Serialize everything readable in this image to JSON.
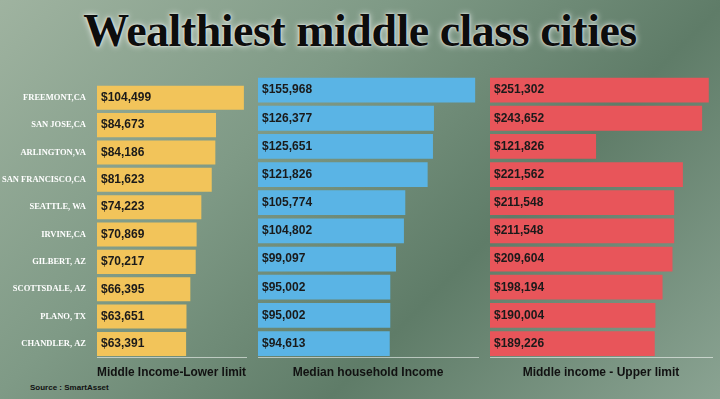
{
  "title": "Wealthiest middle class cities",
  "source": "Source : SmartAsset",
  "chart_data": [
    {
      "type": "bar",
      "orientation": "horizontal",
      "xlabel": "Middle Income-Lower limit",
      "categories": [
        "FREEMONT,CA",
        "SAN JOSE,CA",
        "ARLINGTON,VA",
        "SAN FRANCISCO,CA",
        "SEATTLE, WA",
        "IRVINE,CA",
        "GILBERT, AZ",
        "SCOTTSDALE, AZ",
        "PLANO, TX",
        "CHANDLER, AZ"
      ],
      "values": [
        104499,
        84673,
        84186,
        81623,
        74223,
        70869,
        70217,
        66395,
        63651,
        63391
      ],
      "value_labels": [
        "$104,499",
        "$84,673",
        "$84,186",
        "$81,623",
        "$74,223",
        "$70,869",
        "$70,217",
        "$66,395",
        "$63,651",
        "$63,391"
      ],
      "color": "#f2c45a",
      "xlim": [
        0,
        106000
      ],
      "data_labels": true,
      "tick_labels": "y",
      "grid": false
    },
    {
      "type": "bar",
      "orientation": "horizontal",
      "xlabel": "Median household Income",
      "categories": [
        "FREEMONT,CA",
        "SAN JOSE,CA",
        "ARLINGTON,VA",
        "SAN FRANCISCO,CA",
        "SEATTLE, WA",
        "IRVINE,CA",
        "GILBERT, AZ",
        "SCOTTSDALE, AZ",
        "PLANO, TX",
        "CHANDLER, AZ"
      ],
      "values": [
        155968,
        126377,
        125651,
        121826,
        105774,
        104802,
        99097,
        95002,
        95002,
        94613
      ],
      "value_labels": [
        "$155,968",
        "$126,377",
        "$125,651",
        "$121,826",
        "$105,774",
        "$104,802",
        "$99,097",
        "$95,002",
        "$95,002",
        "$94,613"
      ],
      "color": "#5ab4e5",
      "xlim": [
        0,
        158000
      ],
      "data_labels": true,
      "tick_labels": false,
      "grid": false
    },
    {
      "type": "bar",
      "orientation": "horizontal",
      "xlabel": "Middle income - Upper limit",
      "categories": [
        "FREEMONT,CA",
        "SAN JOSE,CA",
        "ARLINGTON,VA",
        "SAN FRANCISCO,CA",
        "SEATTLE, WA",
        "IRVINE,CA",
        "GILBERT, AZ",
        "SCOTTSDALE, AZ",
        "PLANO, TX",
        "CHANDLER, AZ"
      ],
      "values": [
        251302,
        243652,
        121826,
        221562,
        211548,
        211548,
        209604,
        198194,
        190004,
        189226
      ],
      "value_labels": [
        "$251,302",
        "$243,652",
        "$121,826",
        "$221,562",
        "$211,548",
        "$211,548",
        "$209,604",
        "$198,194",
        "$190,004",
        "$189,226"
      ],
      "color": "#e8555a",
      "xlim": [
        0,
        255000
      ],
      "data_labels": true,
      "tick_labels": false,
      "grid": false
    }
  ]
}
